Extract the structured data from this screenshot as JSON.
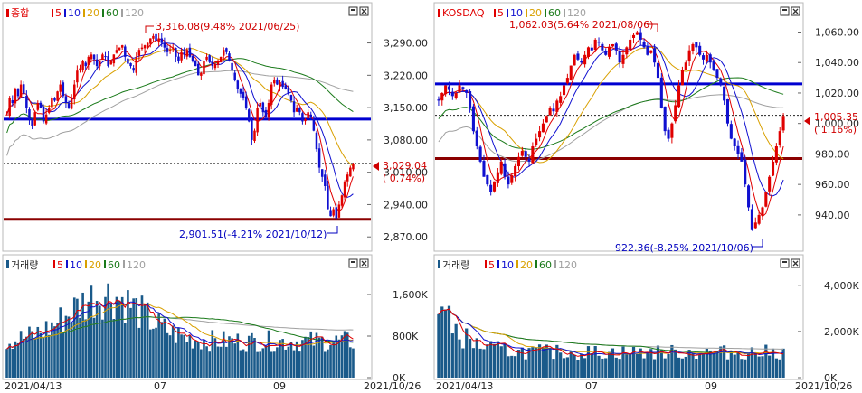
{
  "colors": {
    "ma5": "#e00000",
    "ma10": "#1010d0",
    "ma20": "#d9a000",
    "ma60": "#1a7a1a",
    "ma120": "#a0a0a0",
    "up": "#e00000",
    "down": "#1010d0",
    "volume": "#1a5a8a",
    "support": "#8b0000",
    "resistance": "#0000d0",
    "badge": "#d00000"
  },
  "panels": [
    {
      "id": "kospi",
      "price": {
        "legend": {
          "name": "종합",
          "ma_labels": [
            "5",
            "10",
            "20",
            "60",
            "120"
          ]
        },
        "y_ticks": [
          "3,290.00",
          "3,220.00",
          "3,150.00",
          "3,080.00",
          "3,010.00",
          "2,940.00",
          "2,870.00"
        ],
        "current_value": "3,029.04",
        "current_change": "( 0.74%)",
        "high_annotation": "3,316.08(9.48% 2021/06/25)",
        "low_annotation": "2,901.51(-4.21% 2021/10/12)"
      },
      "volume": {
        "legend": {
          "name": "거래량",
          "ma_labels": [
            "5",
            "10",
            "20",
            "60",
            "120"
          ]
        },
        "y_ticks": [
          "1,600K",
          "800K",
          "0K"
        ]
      },
      "x_ticks": [
        "2021/04/13",
        "07",
        "09",
        "2021/10/26"
      ]
    },
    {
      "id": "kosdaq",
      "price": {
        "legend": {
          "name": "KOSDAQ",
          "ma_labels": [
            "5",
            "10",
            "20",
            "60",
            "120"
          ]
        },
        "y_ticks": [
          "1,060.00",
          "1,040.00",
          "1,020.00",
          "1,000.00",
          "980.00",
          "960.00",
          "940.00"
        ],
        "current_value": "1,005.35",
        "current_change": "( 1.16%)",
        "high_annotation": "1,062.03(5.64% 2021/08/06)",
        "low_annotation": "922.36(-8.25% 2021/10/06)"
      },
      "volume": {
        "legend": {
          "name": "거래량",
          "ma_labels": [
            "5",
            "10",
            "20",
            "60",
            "120"
          ]
        },
        "y_ticks": [
          "4,000K",
          "2,000K",
          "0K"
        ]
      },
      "x_ticks": [
        "2021/04/13",
        "07",
        "09",
        "2021/10/26"
      ]
    }
  ],
  "chart_data": [
    {
      "type": "candlestick",
      "title": "종합",
      "y_ticks": [
        3290,
        3220,
        3150,
        3080,
        3010,
        2940,
        2870
      ],
      "ylim": [
        2845,
        3340
      ],
      "x_range": [
        "2021/04/13",
        "2021/10/26"
      ],
      "current": 3029.04,
      "high": {
        "value": 3316.08,
        "pct": 9.48,
        "date": "2021/06/25"
      },
      "low": {
        "value": 2901.51,
        "pct": -4.21,
        "date": "2021/10/12"
      },
      "horizontal_lines": {
        "resistance": 3125,
        "support": 2908,
        "dotted_current": 3029.04
      },
      "close": [
        3135,
        3170,
        3160,
        3190,
        3175,
        3200,
        3180,
        3150,
        3125,
        3110,
        3140,
        3160,
        3150,
        3120,
        3135,
        3150,
        3170,
        3165,
        3185,
        3200,
        3175,
        3160,
        3150,
        3170,
        3200,
        3230,
        3235,
        3250,
        3240,
        3260,
        3265,
        3255,
        3240,
        3250,
        3265,
        3260,
        3240,
        3250,
        3265,
        3275,
        3280,
        3285,
        3260,
        3245,
        3240,
        3230,
        3260,
        3275,
        3280,
        3285,
        3290,
        3300,
        3305,
        3295,
        3300,
        3290,
        3280,
        3270,
        3275,
        3280,
        3260,
        3250,
        3270,
        3265,
        3275,
        3260,
        3250,
        3240,
        3220,
        3225,
        3250,
        3260,
        3250,
        3240,
        3245,
        3250,
        3260,
        3275,
        3270,
        3250,
        3230,
        3210,
        3190,
        3180,
        3170,
        3150,
        3120,
        3080,
        3100,
        3150,
        3160,
        3140,
        3130,
        3160,
        3200,
        3210,
        3200,
        3205,
        3195,
        3190,
        3180,
        3165,
        3140,
        3150,
        3140,
        3120,
        3125,
        3140,
        3130,
        3100,
        3060,
        3020,
        3000,
        2980,
        2930,
        2915,
        2930,
        2910,
        2940,
        2960,
        2990,
        3005,
        3020,
        3029
      ],
      "series": [
        {
          "name": "거래량",
          "max": 2000,
          "unit": "K",
          "y_ticks": [
            1600,
            800,
            0
          ]
        }
      ]
    },
    {
      "type": "candlestick",
      "title": "KOSDAQ",
      "y_ticks": [
        1060,
        1040,
        1020,
        1000,
        980,
        960,
        940
      ],
      "ylim": [
        918,
        1068
      ],
      "x_range": [
        "2021/04/13",
        "2021/10/26"
      ],
      "current": 1005.35,
      "high": {
        "value": 1062.03,
        "pct": 5.64,
        "date": "2021/08/06"
      },
      "low": {
        "value": 922.36,
        "pct": -8.25,
        "date": "2021/10/06"
      },
      "horizontal_lines": {
        "resistance": 1026,
        "support": 977,
        "dotted_current": 1005.35
      },
      "close": [
        1015,
        1020,
        1025,
        1022,
        1018,
        1020,
        1025,
        1023,
        1020,
        1010,
        995,
        985,
        975,
        965,
        960,
        955,
        962,
        968,
        975,
        965,
        960,
        966,
        972,
        978,
        982,
        978,
        975,
        985,
        990,
        995,
        1000,
        1005,
        1010,
        1008,
        1015,
        1018,
        1025,
        1030,
        1038,
        1045,
        1042,
        1040,
        1045,
        1050,
        1048,
        1055,
        1053,
        1048,
        1045,
        1050,
        1052,
        1048,
        1040,
        1045,
        1050,
        1055,
        1058,
        1060,
        1055,
        1050,
        1045,
        1048,
        1040,
        1030,
        1010,
        995,
        990,
        1000,
        1012,
        1025,
        1035,
        1040,
        1048,
        1052,
        1050,
        1045,
        1042,
        1045,
        1040,
        1035,
        1030,
        1025,
        1015,
        1000,
        990,
        985,
        980,
        975,
        960,
        945,
        930,
        935,
        940,
        945,
        955,
        965,
        975,
        985,
        995,
        1005
      ],
      "series": [
        {
          "name": "거래량",
          "max": 4500,
          "unit": "K",
          "y_ticks": [
            4000,
            2000,
            0
          ]
        }
      ]
    }
  ]
}
